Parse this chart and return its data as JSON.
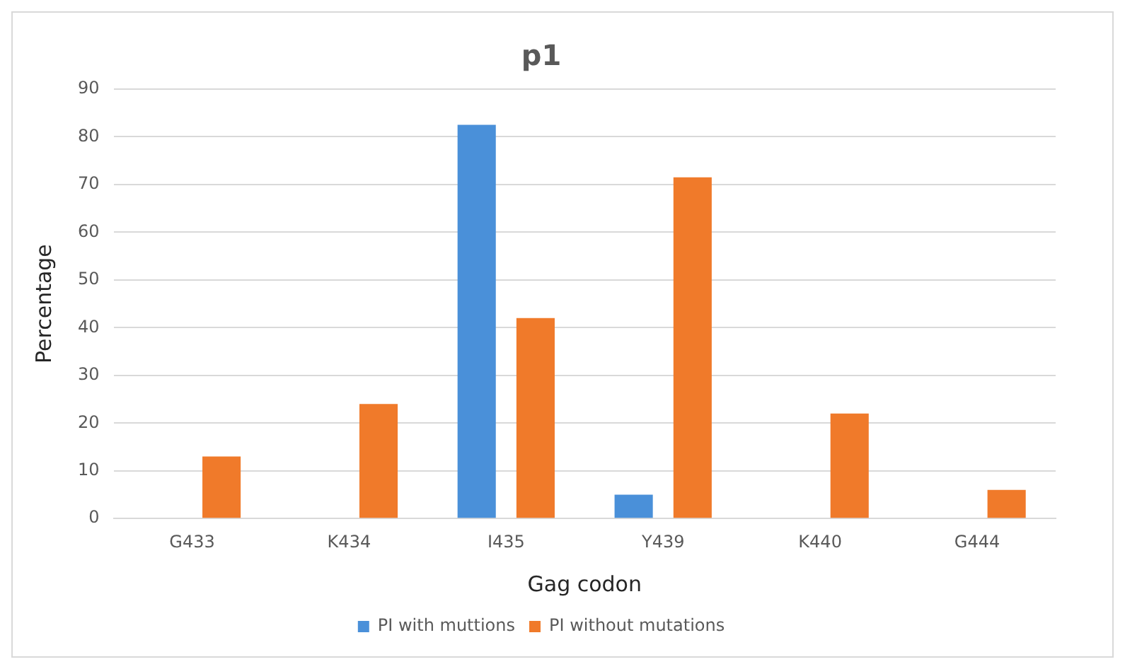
{
  "chart_data": {
    "type": "bar",
    "title": "p1",
    "xlabel": "Gag codon",
    "ylabel": "Percentage",
    "categories": [
      "G433",
      "K434",
      "I435",
      "Y439",
      "K440",
      "G444"
    ],
    "series": [
      {
        "name": "PI with muttions",
        "color": "#4a90d9",
        "values": [
          0,
          0,
          82.5,
          5,
          0,
          0
        ]
      },
      {
        "name": "PI without mutations",
        "color": "#f07a2a",
        "values": [
          13,
          24,
          42,
          71.5,
          22,
          6
        ]
      }
    ],
    "ylim": [
      0,
      90
    ],
    "yticks": [
      0,
      10,
      20,
      30,
      40,
      50,
      60,
      70,
      80,
      90
    ],
    "grid": "y",
    "legend": "bottom"
  }
}
